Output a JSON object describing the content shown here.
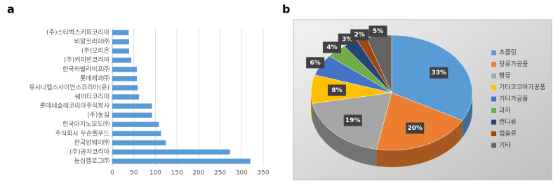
{
  "chart_data": [
    {
      "type": "bar",
      "panel": "a",
      "orientation": "horizontal",
      "categories": [
        "(주)스타벅스커피코리아",
        "비알코리아㈜",
        "(주)오리온",
        "(주)커피빈코리아",
        "한국허벌라이프㈜",
        "롯데제과㈜",
        "유사나헬스사이언스코리아(유)",
        "쉐어티코리아",
        "롯데네슬레코리아주식회사",
        "(주)농심",
        "한국아지노모도㈜",
        "주식회사 두손웰푸드",
        "한국암웨이㈜",
        "(주)공차코리아",
        "농심켈로그㈜"
      ],
      "values": [
        38,
        39,
        39,
        44,
        57,
        57,
        59,
        62,
        92,
        92,
        108,
        113,
        124,
        273,
        320
      ],
      "color": "#5b9bd5",
      "xlim": [
        0,
        350
      ],
      "xticks": [
        0,
        50,
        100,
        150,
        200,
        250,
        300,
        350
      ],
      "grid": true
    },
    {
      "type": "pie",
      "panel": "b",
      "categories": [
        "초콜릿",
        "당류가공품",
        "빵류",
        "기타코코아가공품",
        "기타가공품",
        "과자",
        "캔디류",
        "캡슐류",
        "기타"
      ],
      "values": [
        33,
        20,
        19,
        8,
        6,
        4,
        3,
        2,
        5
      ],
      "value_labels": [
        "33%",
        "20%",
        "19%",
        "8%",
        "6%",
        "4%",
        "3%",
        "2%",
        "5%"
      ],
      "colors": [
        "#5b9bd5",
        "#ed7d31",
        "#a5a5a5",
        "#ffc000",
        "#4472c4",
        "#70ad47",
        "#264478",
        "#9e480e",
        "#636363"
      ],
      "legend": "right"
    }
  ]
}
